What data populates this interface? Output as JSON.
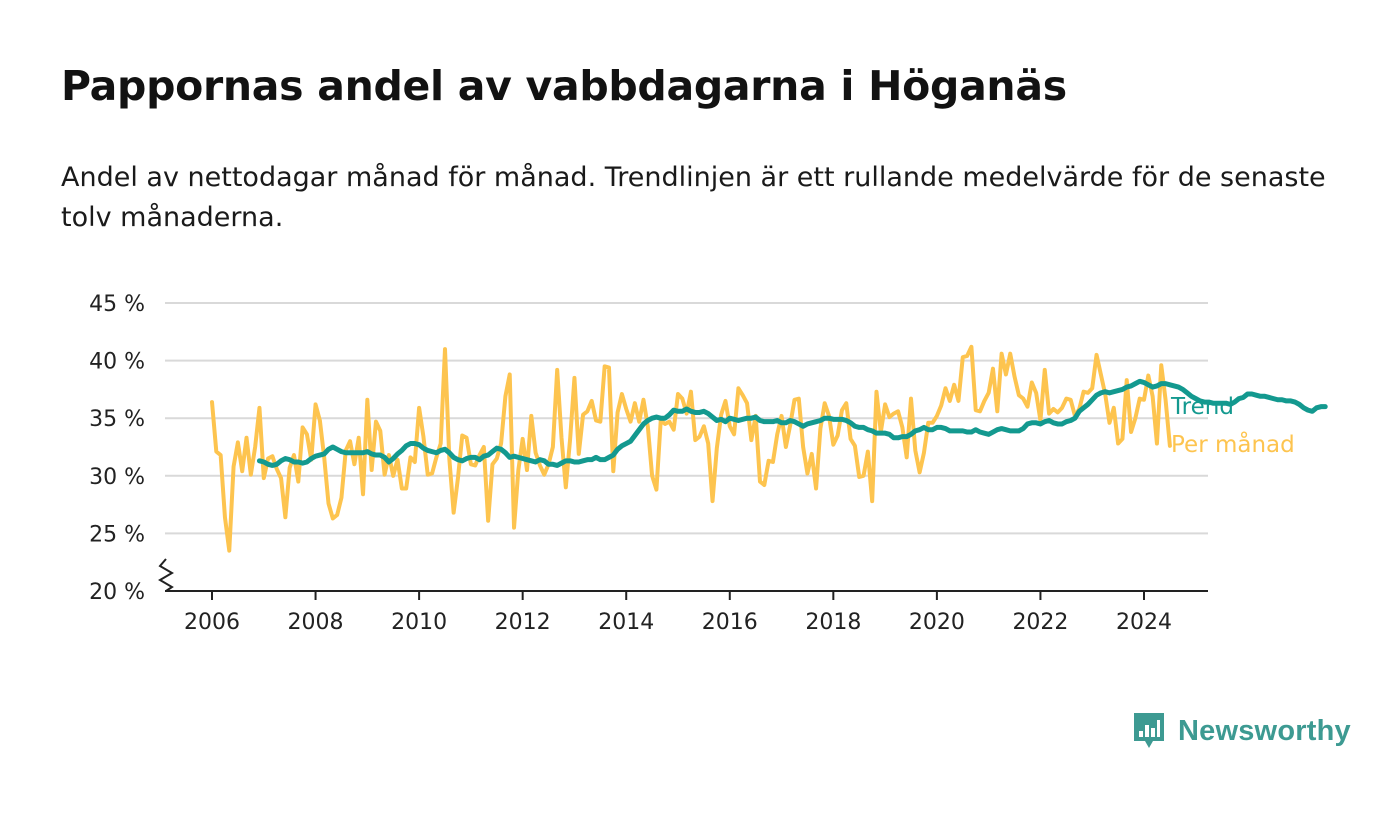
{
  "title": "Pappornas andel av vabbdagarna i Höganäs",
  "subtitle": "Andel av nettodagar månad för månad. Trendlinjen är ett rullande medelvärde för de senaste tolv månaderna.",
  "brand": {
    "name": "Newsworthy",
    "icon": "newsworthy-logo-icon",
    "color": "#3d9a92"
  },
  "chart_data": {
    "type": "line",
    "title": "Pappornas andel av vabbdagarna i Höganäs",
    "xlabel": "",
    "ylabel": "",
    "x_ticks": [
      "2006",
      "2008",
      "2010",
      "2012",
      "2014",
      "2016",
      "2018",
      "2020",
      "2022",
      "2024"
    ],
    "y_ticks": [
      "20 %",
      "25 %",
      "30 %",
      "35 %",
      "40 %",
      "45 %"
    ],
    "ylim": [
      20,
      45
    ],
    "y_axis_break": true,
    "grid": true,
    "legend": "inline-right",
    "x_start": "2006-01",
    "series": [
      {
        "name": "Trend",
        "color": "#13998f",
        "start": "2006-12",
        "values": [
          31.3,
          31.2,
          31.0,
          30.9,
          31.0,
          31.3,
          31.5,
          31.4,
          31.2,
          31.2,
          31.1,
          31.2,
          31.5,
          31.7,
          31.8,
          31.9,
          32.3,
          32.5,
          32.3,
          32.1,
          32.0,
          32.0,
          32.0,
          32.0,
          32.0,
          32.1,
          31.9,
          31.8,
          31.8,
          31.6,
          31.2,
          31.5,
          31.9,
          32.2,
          32.6,
          32.8,
          32.8,
          32.7,
          32.4,
          32.2,
          32.1,
          32.0,
          32.2,
          32.3,
          32.0,
          31.6,
          31.4,
          31.3,
          31.5,
          31.6,
          31.6,
          31.4,
          31.7,
          31.8,
          32.1,
          32.4,
          32.3,
          32.0,
          31.6,
          31.7,
          31.6,
          31.5,
          31.4,
          31.3,
          31.2,
          31.4,
          31.3,
          31.0,
          31.0,
          30.9,
          31.1,
          31.3,
          31.3,
          31.2,
          31.2,
          31.3,
          31.4,
          31.4,
          31.6,
          31.4,
          31.4,
          31.6,
          31.8,
          32.3,
          32.6,
          32.8,
          33.0,
          33.5,
          34.0,
          34.5,
          34.8,
          35.0,
          35.1,
          35.0,
          35.0,
          35.3,
          35.7,
          35.6,
          35.6,
          35.8,
          35.6,
          35.5,
          35.5,
          35.6,
          35.4,
          35.1,
          34.8,
          34.9,
          34.7,
          35.0,
          34.9,
          34.8,
          34.9,
          35.0,
          35.0,
          35.1,
          34.8,
          34.7,
          34.7,
          34.7,
          34.8,
          34.6,
          34.6,
          34.8,
          34.7,
          34.5,
          34.3,
          34.5,
          34.6,
          34.7,
          34.8,
          35.0,
          35.0,
          34.9,
          34.9,
          34.9,
          34.8,
          34.6,
          34.3,
          34.2,
          34.2,
          34.0,
          33.9,
          33.7,
          33.7,
          33.7,
          33.6,
          33.3,
          33.3,
          33.4,
          33.4,
          33.6,
          33.9,
          34.0,
          34.2,
          34.0,
          34.0,
          34.2,
          34.2,
          34.1,
          33.9,
          33.9,
          33.9,
          33.9,
          33.8,
          33.8,
          34.0,
          33.8,
          33.7,
          33.6,
          33.8,
          34.0,
          34.1,
          34.0,
          33.9,
          33.9,
          33.9,
          34.1,
          34.5,
          34.6,
          34.6,
          34.5,
          34.7,
          34.8,
          34.6,
          34.5,
          34.5,
          34.7,
          34.8,
          35.0,
          35.6,
          35.9,
          36.2,
          36.6,
          37.0,
          37.2,
          37.3,
          37.2,
          37.3,
          37.4,
          37.5,
          37.7,
          37.8,
          38.0,
          38.2,
          38.1,
          37.9,
          37.7,
          37.8,
          38.0,
          38.0,
          37.9,
          37.8,
          37.7,
          37.5,
          37.2,
          36.9,
          36.7,
          36.5,
          36.4,
          36.4,
          36.3,
          36.3,
          36.3,
          36.3,
          36.2,
          36.4,
          36.7,
          36.8,
          37.1,
          37.1,
          37.0,
          36.9,
          36.9,
          36.8,
          36.7,
          36.6,
          36.6,
          36.5,
          36.5,
          36.4,
          36.2,
          35.9,
          35.7,
          35.6,
          35.9,
          36.0,
          36.0
        ]
      },
      {
        "name": "Per månad",
        "color": "#fdc44f",
        "start": "2006-01",
        "values": [
          36.4,
          32.1,
          31.8,
          26.4,
          23.5,
          30.8,
          32.9,
          30.4,
          33.3,
          30.1,
          32.5,
          35.9,
          29.8,
          31.5,
          31.7,
          30.6,
          29.8,
          26.4,
          30.7,
          31.8,
          29.5,
          34.2,
          33.6,
          31.4,
          36.2,
          34.8,
          31.6,
          27.6,
          26.3,
          26.6,
          28.1,
          32.2,
          33.0,
          31.0,
          33.3,
          28.4,
          36.6,
          30.5,
          34.7,
          33.9,
          30.1,
          31.8,
          30.0,
          31.4,
          28.9,
          28.9,
          31.6,
          31.2,
          35.9,
          33.4,
          30.1,
          30.2,
          31.6,
          32.8,
          41.0,
          31.5,
          26.8,
          29.8,
          33.5,
          33.3,
          31.0,
          30.9,
          31.8,
          32.5,
          26.1,
          31.0,
          31.5,
          32.8,
          36.9,
          38.8,
          25.5,
          30.5,
          33.2,
          30.5,
          35.2,
          32.0,
          30.9,
          30.1,
          31.0,
          32.5,
          39.2,
          33.3,
          29.0,
          33.2,
          38.5,
          31.9,
          35.3,
          35.6,
          36.5,
          34.8,
          34.7,
          39.5,
          39.4,
          30.4,
          35.5,
          37.1,
          35.8,
          34.7,
          36.3,
          34.7,
          36.6,
          34.3,
          30.0,
          28.8,
          34.8,
          34.5,
          34.7,
          34.0,
          37.1,
          36.7,
          35.4,
          37.3,
          33.1,
          33.4,
          34.3,
          32.8,
          27.8,
          32.4,
          35.3,
          36.5,
          34.3,
          33.6,
          37.6,
          37.0,
          36.3,
          33.1,
          35.2,
          29.5,
          29.2,
          31.3,
          31.2,
          33.6,
          35.2,
          32.5,
          34.4,
          36.6,
          36.7,
          32.5,
          30.2,
          31.9,
          28.9,
          34.1,
          36.3,
          35.2,
          32.7,
          33.5,
          35.7,
          36.3,
          33.2,
          32.6,
          29.9,
          30.0,
          32.1,
          27.8,
          37.3,
          33.8,
          36.2,
          35.1,
          35.4,
          35.6,
          34.2,
          31.6,
          36.7,
          32.2,
          30.3,
          32.0,
          34.6,
          34.6,
          35.2,
          36.1,
          37.6,
          36.5,
          37.9,
          36.5,
          40.3,
          40.4,
          41.2,
          35.7,
          35.6,
          36.5,
          37.2,
          39.3,
          35.6,
          40.6,
          38.8,
          40.6,
          38.6,
          37.0,
          36.7,
          36.0,
          38.1,
          37.2,
          34.8,
          39.2,
          35.4,
          35.8,
          35.5,
          35.9,
          36.7,
          36.6,
          35.2,
          35.8,
          37.3,
          37.2,
          37.6,
          40.5,
          38.8,
          37.1,
          34.6,
          35.9,
          32.8,
          33.2,
          38.3,
          33.8,
          35.0,
          36.7,
          36.6,
          38.7,
          36.9,
          32.8,
          39.6,
          36.6,
          32.6
        ]
      }
    ]
  }
}
